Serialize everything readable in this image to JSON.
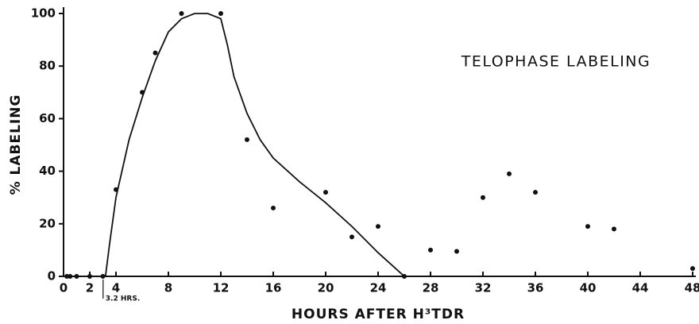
{
  "chart_data": {
    "type": "scatter",
    "title": "TELOPHASE LABELING",
    "x_label": "HOURS AFTER H³TDR",
    "y_label": "% LABELING",
    "annotation": "3.2 HRS.",
    "xlim": [
      0,
      48
    ],
    "ylim": [
      0,
      100
    ],
    "xticks": [
      0,
      2,
      4,
      8,
      12,
      16,
      20,
      24,
      28,
      32,
      36,
      40,
      44,
      48
    ],
    "yticks": [
      0,
      20,
      40,
      60,
      80,
      100
    ],
    "color": "#111111",
    "points": {
      "x": [
        0.25,
        0.5,
        1,
        2,
        3,
        4,
        6,
        7,
        9,
        12,
        14,
        16,
        20,
        22,
        24,
        26,
        28,
        30,
        32,
        34,
        36,
        40,
        42,
        48
      ],
      "y": [
        0,
        0,
        0,
        0,
        0,
        33,
        70,
        85,
        100,
        100,
        52,
        26,
        32,
        15,
        19,
        0,
        10,
        9.5,
        30,
        39,
        32,
        19,
        18,
        3
      ]
    },
    "curve": {
      "x": [
        3.2,
        3.5,
        4,
        5,
        6,
        7,
        8,
        9,
        10,
        11,
        12,
        12.5,
        13,
        14,
        15,
        16,
        18,
        20,
        22,
        24,
        26
      ],
      "y": [
        0,
        12,
        30,
        52,
        68,
        82,
        93,
        98,
        100,
        100,
        98,
        88,
        76,
        62,
        52,
        45,
        36,
        28,
        19,
        9,
        0
      ]
    }
  }
}
